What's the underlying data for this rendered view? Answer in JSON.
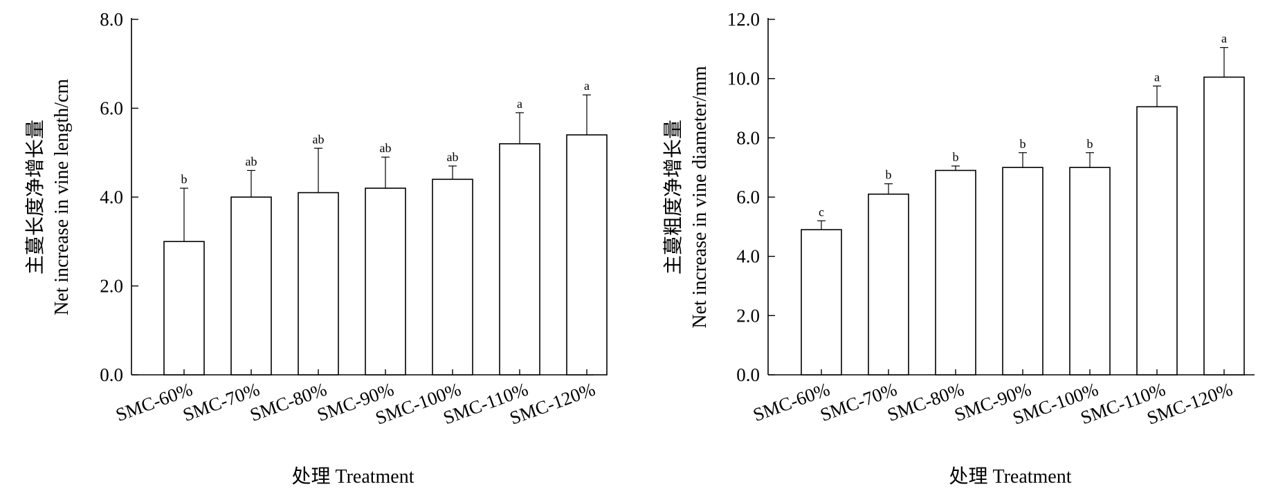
{
  "chart_data": [
    {
      "type": "bar",
      "categories": [
        "SMC-60%",
        "SMC-70%",
        "SMC-80%",
        "SMC-90%",
        "SMC-100%",
        "SMC-110%",
        "SMC-120%"
      ],
      "values": [
        3.0,
        4.0,
        4.1,
        4.2,
        4.4,
        5.2,
        5.4
      ],
      "errors": [
        1.2,
        0.6,
        1.0,
        0.7,
        0.3,
        0.7,
        0.9
      ],
      "significance": [
        "b",
        "ab",
        "ab",
        "ab",
        "ab",
        "a",
        "a"
      ],
      "ylabel_cn": "主蔓长度净增长量",
      "ylabel_en": "Net increase in vine length/cm",
      "xlabel": "处理  Treatment",
      "ylim": [
        0,
        8.0
      ],
      "yticks": [
        "0.0",
        "2.0",
        "4.0",
        "6.0",
        "8.0"
      ],
      "grid": false
    },
    {
      "type": "bar",
      "categories": [
        "SMC-60%",
        "SMC-70%",
        "SMC-80%",
        "SMC-90%",
        "SMC-100%",
        "SMC-110%",
        "SMC-120%"
      ],
      "values": [
        4.9,
        6.1,
        6.9,
        7.0,
        7.0,
        9.05,
        10.05
      ],
      "errors": [
        0.3,
        0.35,
        0.15,
        0.5,
        0.5,
        0.7,
        1.0
      ],
      "significance": [
        "c",
        "b",
        "b",
        "b",
        "b",
        "a",
        "a"
      ],
      "ylabel_cn": "主蔓粗度净增长量",
      "ylabel_en": "Net increase in vine diameter/mm",
      "xlabel": "处理  Treatment",
      "ylim": [
        0,
        12.0
      ],
      "yticks": [
        "0.0",
        "2.0",
        "4.0",
        "6.0",
        "8.0",
        "10.0",
        "12.0"
      ],
      "grid": false
    }
  ]
}
